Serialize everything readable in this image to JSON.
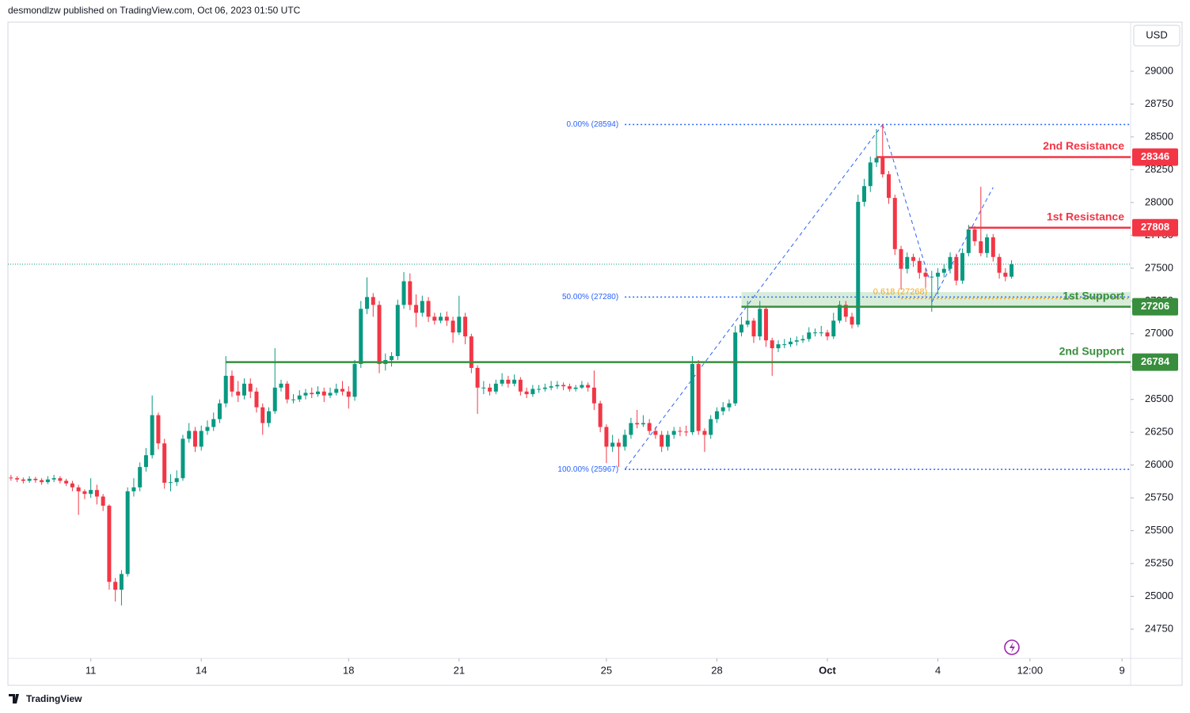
{
  "header": {
    "publisher": "desmondlzw published on TradingView.com, Oct 06, 2023 01:50 UTC",
    "footer": "TradingView",
    "currency": "USD"
  },
  "chart_data": {
    "type": "candlestick",
    "up_color": "#089981",
    "down_color": "#f23645",
    "xlim": [
      -0.5,
      182.4
    ],
    "ylim": [
      24527,
      29374
    ],
    "xticks": [
      {
        "value": 13,
        "label": "11"
      },
      {
        "value": 31,
        "label": "14"
      },
      {
        "value": 55,
        "label": "18"
      },
      {
        "value": 73,
        "label": "21"
      },
      {
        "value": 97,
        "label": "25"
      },
      {
        "value": 115,
        "label": "28"
      },
      {
        "value": 133,
        "label": "Oct"
      },
      {
        "value": 151,
        "label": "4"
      },
      {
        "value": 166,
        "label": "12:00"
      },
      {
        "value": 181,
        "label": "9"
      }
    ],
    "yticks": [
      24750,
      25000,
      25250,
      25500,
      25750,
      26000,
      26250,
      26500,
      26750,
      27000,
      27250,
      27500,
      27750,
      28000,
      28250,
      28500,
      28750,
      29000
    ],
    "open": [
      25905,
      25900,
      25890,
      25880,
      25895,
      25885,
      25870,
      25890,
      25900,
      25880,
      25860,
      25830,
      25800,
      25780,
      25810,
      25760,
      25690,
      25110,
      25050,
      25170,
      25800,
      25830,
      25985,
      26075,
      26380,
      26165,
      25865,
      25870,
      25900,
      26200,
      26260,
      26140,
      26260,
      26290,
      26350,
      26470,
      26680,
      26560,
      26530,
      26620,
      26560,
      26440,
      26320,
      26410,
      26590,
      26620,
      26500,
      26500,
      26530,
      26550,
      26540,
      26560,
      26530,
      26550,
      26580,
      26560,
      26520,
      26770,
      27190,
      27280,
      27220,
      26770,
      26800,
      26830,
      27220,
      27400,
      27220,
      27160,
      27250,
      27130,
      27100,
      27130,
      27100,
      27010,
      27130,
      26980,
      26740,
      26590,
      26590,
      26560,
      26620,
      26650,
      26620,
      26650,
      26560,
      26540,
      26580,
      26580,
      26590,
      26600,
      26610,
      26600,
      26580,
      26590,
      26610,
      26590,
      26470,
      26290,
      26140,
      26170,
      26140,
      26230,
      26320,
      26310,
      26320,
      26260,
      26230,
      26140,
      26230,
      26260,
      26255,
      26250,
      26770,
      26260,
      26230,
      26350,
      26410,
      26440,
      26470,
      27010,
      27070,
      27100,
      26980,
      27190,
      26950,
      26890,
      26920,
      26920,
      26940,
      26950,
      26960,
      27010,
      27010,
      27010,
      26980,
      27100,
      27220,
      27130,
      27070,
      28005,
      28125,
      28305,
      28340,
      28215,
      28035,
      27645,
      27495,
      27585,
      27555,
      27465,
      27435,
      27435,
      27465,
      27495,
      27585,
      27405,
      27615,
      27795,
      27705,
      27615,
      27735,
      27585,
      27465,
      27435
    ],
    "high": [
      25925,
      25915,
      25905,
      25915,
      25910,
      25900,
      25915,
      25925,
      25915,
      25895,
      25880,
      25850,
      25815,
      25900,
      25850,
      25780,
      25700,
      25140,
      25200,
      25830,
      25900,
      26020,
      26130,
      26530,
      26400,
      26200,
      25930,
      25960,
      26230,
      26320,
      26290,
      26300,
      26340,
      26400,
      26500,
      26830,
      26720,
      26640,
      26660,
      26660,
      26590,
      26470,
      26440,
      26890,
      26650,
      26640,
      26540,
      26570,
      26580,
      26590,
      26600,
      26590,
      26590,
      26620,
      26640,
      26600,
      26800,
      27250,
      27430,
      27310,
      27250,
      26850,
      26860,
      27260,
      27470,
      27460,
      27300,
      27290,
      27280,
      27160,
      27160,
      27170,
      27130,
      27290,
      27160,
      27000,
      26760,
      26640,
      26620,
      26650,
      26700,
      26680,
      26690,
      26670,
      26590,
      26610,
      26610,
      26620,
      26640,
      26640,
      26630,
      26620,
      26610,
      26640,
      26630,
      26720,
      26490,
      26310,
      26230,
      26200,
      26270,
      26360,
      26420,
      26380,
      26350,
      26290,
      26260,
      26260,
      26290,
      26290,
      26300,
      26830,
      26800,
      26280,
      26380,
      26440,
      26480,
      26500,
      27060,
      27130,
      27250,
      27120,
      27250,
      27210,
      26970,
      26950,
      26960,
      26970,
      26980,
      26990,
      27050,
      27040,
      27060,
      27030,
      27160,
      27250,
      27250,
      27160,
      28060,
      28180,
      28350,
      28560,
      28595,
      28240,
      28060,
      27670,
      27620,
      27610,
      27580,
      27500,
      27480,
      27500,
      27530,
      27620,
      27610,
      27650,
      27830,
      27820,
      28120,
      27760,
      27760,
      27610,
      27500,
      27560
    ],
    "low": [
      25880,
      25870,
      25860,
      25865,
      25865,
      25850,
      25855,
      25870,
      25860,
      25840,
      25800,
      25620,
      25740,
      25750,
      25700,
      25650,
      25050,
      24960,
      24930,
      25150,
      25760,
      25800,
      25950,
      26050,
      26120,
      25820,
      25800,
      25840,
      25880,
      26170,
      26100,
      26110,
      26230,
      26260,
      26320,
      26440,
      26520,
      26480,
      26500,
      26510,
      26400,
      26230,
      26290,
      26390,
      26560,
      26470,
      26470,
      26480,
      26500,
      26510,
      26520,
      26480,
      26510,
      26530,
      26530,
      26430,
      26490,
      26740,
      27150,
      27130,
      26700,
      26720,
      26750,
      26800,
      27190,
      27180,
      27050,
      27130,
      27090,
      27070,
      27080,
      27060,
      26930,
      26990,
      26920,
      26700,
      26390,
      26540,
      26530,
      26540,
      26600,
      26590,
      26600,
      26530,
      26510,
      26520,
      26550,
      26560,
      26570,
      26580,
      26570,
      26560,
      26560,
      26580,
      26560,
      26420,
      26250,
      26015,
      26100,
      25985,
      26110,
      26200,
      26280,
      26290,
      26230,
      26200,
      26100,
      26110,
      26200,
      26220,
      26220,
      26230,
      26230,
      26100,
      26200,
      26320,
      26380,
      26410,
      26450,
      26980,
      27050,
      26930,
      26950,
      26900,
      26680,
      26860,
      26890,
      26900,
      26910,
      26930,
      26940,
      26980,
      26980,
      26950,
      26960,
      27080,
      27090,
      27040,
      27050,
      27970,
      28080,
      28270,
      28190,
      27990,
      27600,
      27340,
      27460,
      27510,
      27420,
      27350,
      27168,
      27300,
      27430,
      27460,
      27370,
      27380,
      27590,
      27670,
      27590,
      27580,
      27550,
      27420,
      27400,
      27420
    ],
    "close": [
      25900,
      25890,
      25880,
      25895,
      25885,
      25870,
      25890,
      25900,
      25880,
      25860,
      25830,
      25800,
      25780,
      25810,
      25760,
      25690,
      25110,
      25050,
      25170,
      25800,
      25830,
      25985,
      26075,
      26380,
      26165,
      25865,
      25870,
      25900,
      26200,
      26260,
      26140,
      26260,
      26290,
      26350,
      26470,
      26680,
      26560,
      26530,
      26620,
      26560,
      26440,
      26320,
      26410,
      26590,
      26620,
      26500,
      26500,
      26530,
      26550,
      26540,
      26560,
      26530,
      26550,
      26580,
      26560,
      26520,
      26770,
      27190,
      27280,
      27220,
      26770,
      26800,
      26830,
      27220,
      27400,
      27220,
      27160,
      27250,
      27130,
      27100,
      27130,
      27100,
      27010,
      27130,
      26980,
      26740,
      26590,
      26590,
      26560,
      26620,
      26650,
      26620,
      26650,
      26560,
      26540,
      26580,
      26580,
      26590,
      26600,
      26610,
      26600,
      26580,
      26590,
      26610,
      26590,
      26470,
      26290,
      26140,
      26170,
      26140,
      26230,
      26320,
      26310,
      26320,
      26260,
      26230,
      26140,
      26230,
      26260,
      26255,
      26250,
      26770,
      26260,
      26230,
      26350,
      26410,
      26440,
      26470,
      27010,
      27070,
      27100,
      26980,
      27190,
      26950,
      26890,
      26920,
      26920,
      26940,
      26950,
      26960,
      27010,
      27010,
      27010,
      26980,
      27100,
      27220,
      27130,
      27070,
      28005,
      28125,
      28305,
      28340,
      28215,
      28035,
      27645,
      27495,
      27585,
      27555,
      27465,
      27435,
      27435,
      27465,
      27495,
      27585,
      27405,
      27615,
      27795,
      27705,
      27615,
      27735,
      27585,
      27465,
      27435,
      27530
    ],
    "levels": [
      {
        "name": "2nd Resistance",
        "value": 28346,
        "color": "#f23645",
        "from": 141
      },
      {
        "name": "1st Resistance",
        "value": 27808,
        "color": "#f23645",
        "from": 156
      },
      {
        "name": "1st Support",
        "value": 27206,
        "color": "#388e3c",
        "from": 119
      },
      {
        "name": "2nd Support",
        "value": 26784,
        "color": "#388e3c",
        "from": 35
      }
    ],
    "zone": {
      "from": 119,
      "low": 27206,
      "high": 27318,
      "color": "#c8e6c9"
    },
    "fib": {
      "from": 100,
      "color": "#2962ff",
      "levels": [
        {
          "label": "0.00% (28594)",
          "value": 28594
        },
        {
          "label": "50.00% (27280)",
          "value": 27280
        },
        {
          "label": "100.00% (25967)",
          "value": 25967
        }
      ]
    },
    "golden": {
      "label": "0.618 (27268)",
      "value": 27268,
      "from": 145,
      "color": "#f5a623"
    },
    "trendlines": [
      {
        "x": [
          100,
          142
        ],
        "y": [
          25967,
          28594
        ]
      },
      {
        "x": [
          142,
          149.5
        ],
        "y": [
          28594,
          27430
        ]
      },
      {
        "x": [
          150,
          160
        ],
        "y": [
          27240,
          28115
        ]
      }
    ]
  }
}
